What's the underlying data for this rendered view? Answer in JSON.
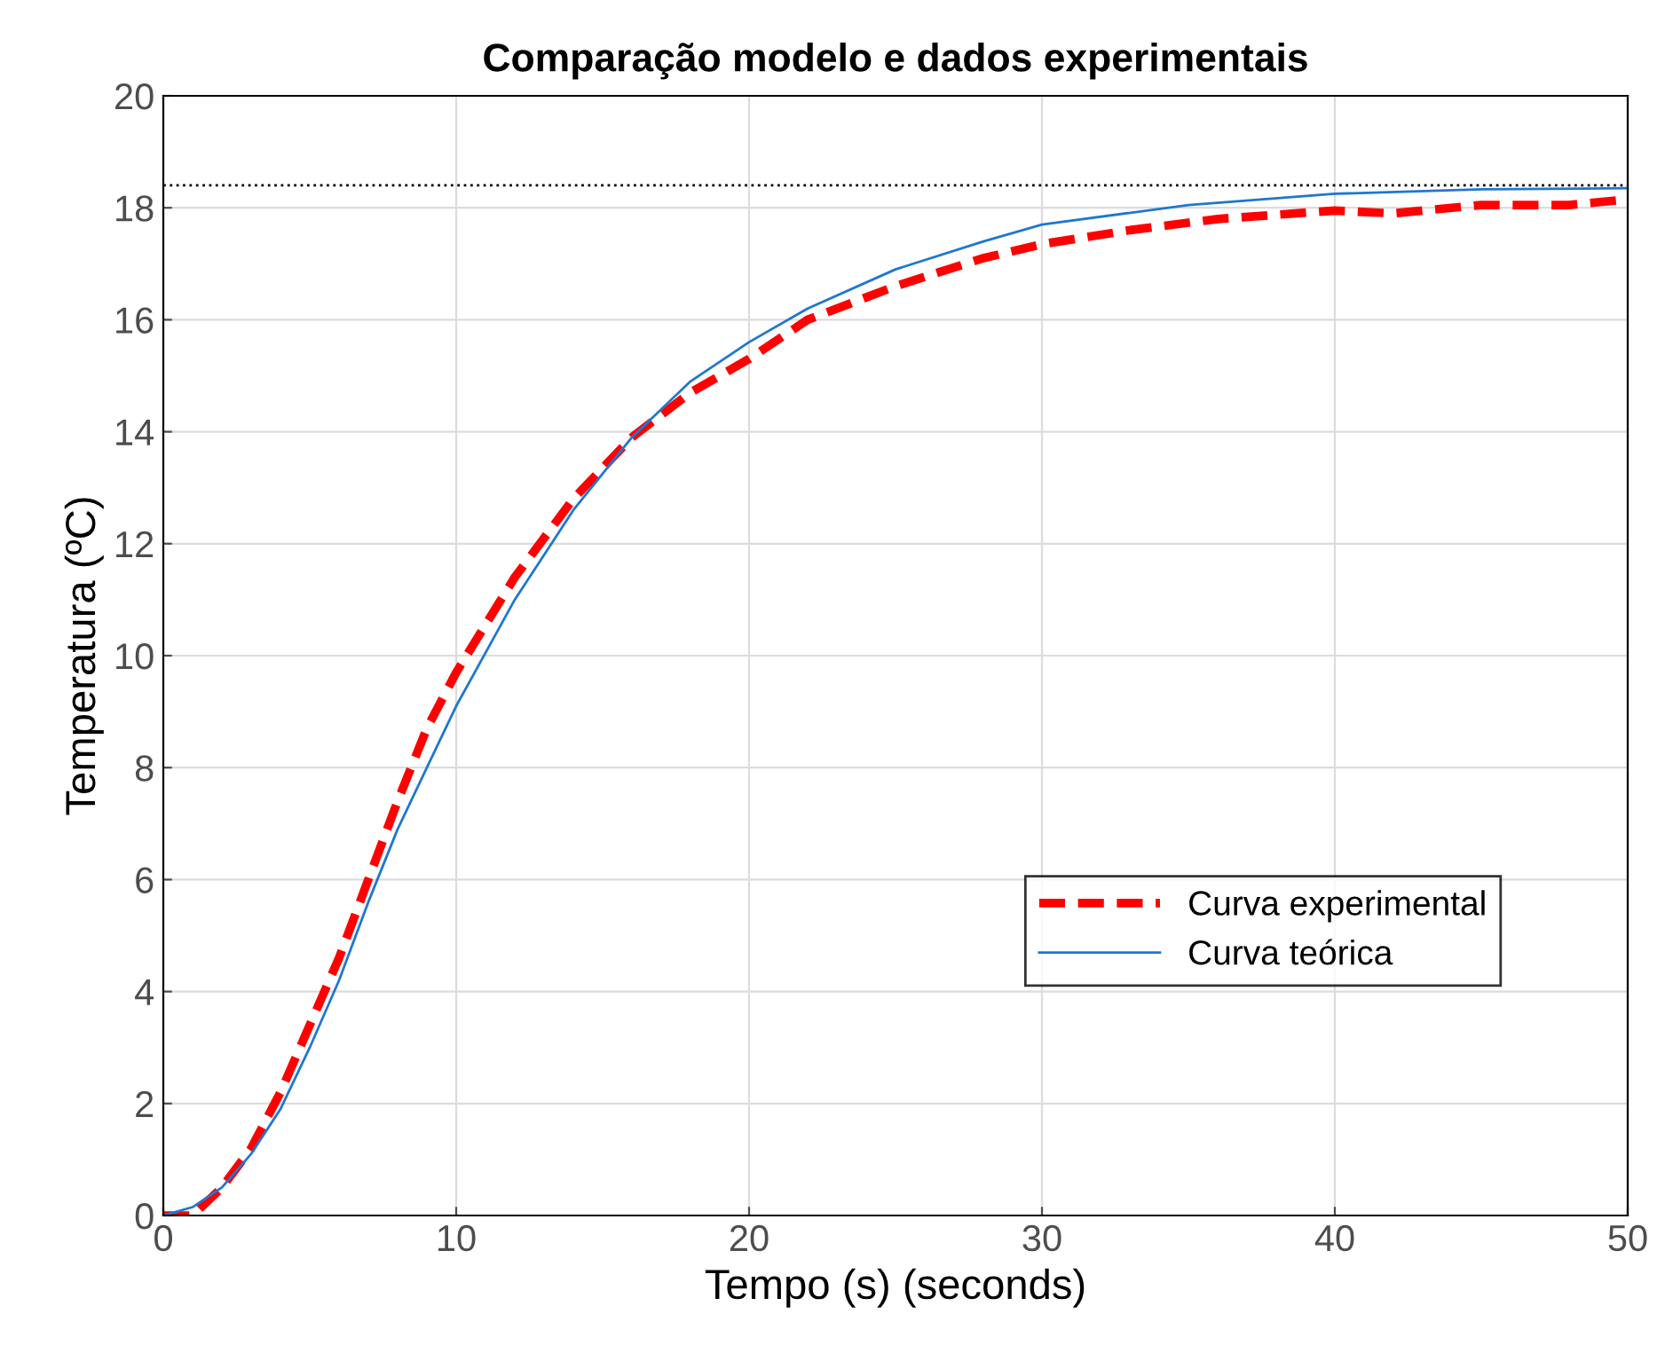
{
  "chart_data": {
    "type": "line",
    "title": "Comparação modelo e dados experimentais",
    "xlabel": "Tempo (s) (seconds)",
    "ylabel": "Temperatura (ºC)",
    "xlim": [
      0,
      50
    ],
    "xticks": [
      0,
      10,
      20,
      30,
      40,
      50
    ],
    "ylim": [
      0,
      20
    ],
    "yticks": [
      0,
      2,
      4,
      6,
      8,
      10,
      12,
      14,
      16,
      18,
      20
    ],
    "grid": true,
    "legend": "bottom right",
    "series": [
      {
        "name": "Curva experimental",
        "color": "#ff0000",
        "line_style": "dashed",
        "x": [
          0,
          1,
          2,
          3,
          4,
          5,
          6,
          7,
          8,
          9,
          10,
          12,
          14,
          16,
          18,
          20,
          22,
          25,
          28,
          30,
          33,
          36,
          40,
          42,
          45,
          48,
          50
        ],
        "values": [
          0,
          0,
          0.5,
          1.2,
          2.2,
          3.4,
          4.6,
          6.0,
          7.4,
          8.7,
          9.7,
          11.4,
          12.8,
          13.9,
          14.7,
          15.3,
          16.0,
          16.6,
          17.1,
          17.35,
          17.6,
          17.8,
          17.95,
          17.9,
          18.05,
          18.05,
          18.15
        ]
      },
      {
        "name": "Curva teórica",
        "color": "#1f77d0",
        "line_style": "solid",
        "x": [
          0,
          1,
          2,
          3,
          4,
          5,
          6,
          7,
          8,
          9,
          10,
          12,
          14,
          16,
          18,
          20,
          22,
          25,
          28,
          30,
          35,
          40,
          45,
          50
        ],
        "values": [
          0,
          0.15,
          0.5,
          1.1,
          1.9,
          3.0,
          4.2,
          5.6,
          6.9,
          8.0,
          9.1,
          11.0,
          12.6,
          13.9,
          14.9,
          15.6,
          16.2,
          16.9,
          17.4,
          17.7,
          18.05,
          18.25,
          18.33,
          18.35
        ]
      }
    ],
    "ref_lines": [
      {
        "axis": "y",
        "value": 18.4,
        "color": "#000000",
        "line_style": "dotted"
      }
    ]
  }
}
